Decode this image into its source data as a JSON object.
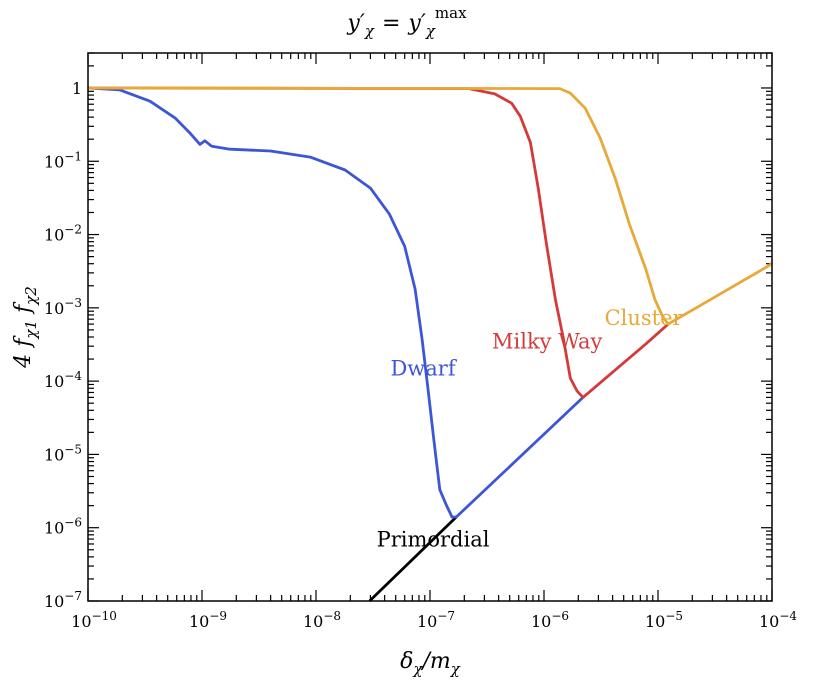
{
  "chart_data": {
    "type": "line",
    "title": {
      "lhs": "y′",
      "lhs_sub": "χ",
      "eq": "=",
      "rhs": "y′",
      "rhs_sub": "χ",
      "rhs_sup": "max"
    },
    "xlabel": {
      "main": "δ",
      "sub1": "χ",
      "slash": "/m",
      "sub2": "χ"
    },
    "ylabel": {
      "prefix": "4 f",
      "sub1": "χ1",
      "mid": " f",
      "sub2": "χ2"
    },
    "xscale": "log",
    "yscale": "log",
    "xlim": [
      1e-10,
      0.0001
    ],
    "ylim": [
      1e-07,
      3
    ],
    "xticks": [
      1e-10,
      1e-09,
      1e-08,
      1e-07,
      1e-06,
      1e-05,
      0.0001
    ],
    "yticks": [
      1e-07,
      1e-06,
      1e-05,
      0.0001,
      0.001,
      0.01,
      0.1,
      1
    ],
    "grid": false,
    "series": [
      {
        "name": "Primordial",
        "color": "#000000",
        "x": [
          2.95e-08,
          1.7e-07
        ],
        "y": [
          1e-07,
          1.4e-06
        ]
      },
      {
        "name": "Dwarf",
        "color": "#3d56d6",
        "x": [
          1e-10,
          1.9e-10,
          3.5e-10,
          5.8e-10,
          7.9e-10,
          9.6e-10,
          1.06e-09,
          1.22e-09,
          1.76e-09,
          4e-09,
          8.9e-09,
          1.8e-08,
          3e-08,
          4.4e-08,
          6e-08,
          7.4e-08,
          8.5e-08,
          9.6e-08,
          1.08e-07,
          1.22e-07,
          1.38e-07,
          1.56e-07,
          1.7e-07,
          2.2e-06
        ],
        "y": [
          1,
          0.94,
          0.66,
          0.39,
          0.24,
          0.17,
          0.19,
          0.16,
          0.146,
          0.138,
          0.114,
          0.076,
          0.043,
          0.019,
          0.0069,
          0.0018,
          0.00038,
          7.8e-05,
          1.6e-05,
          3.3e-06,
          2.1e-06,
          1.4e-06,
          1.4e-06,
          6e-05
        ]
      },
      {
        "name": "Milky Way",
        "color": "#d43a3a",
        "x": [
          1e-10,
          2.2e-07,
          3.7e-07,
          5.2e-07,
          6.2e-07,
          7.6e-07,
          8.9e-07,
          1.05e-06,
          1.26e-06,
          1.48e-06,
          1.7e-06,
          1.95e-06,
          2.2e-06,
          7.8e-06,
          1.23e-05
        ],
        "y": [
          1,
          0.98,
          0.83,
          0.62,
          0.41,
          0.18,
          0.043,
          0.0075,
          0.0013,
          0.00038,
          0.00011,
          7.3e-05,
          6e-05,
          0.00032,
          0.0006
        ]
      },
      {
        "name": "Cluster",
        "color": "#e8a83a",
        "x": [
          1e-10,
          1.38e-06,
          1.7e-06,
          2.3e-06,
          3.1e-06,
          4.2e-06,
          5.6e-06,
          7.8e-06,
          9.4e-06,
          1.1e-05,
          1.23e-05,
          9.5e-05,
          0.0001
        ],
        "y": [
          1,
          0.98,
          0.85,
          0.53,
          0.21,
          0.059,
          0.014,
          0.0034,
          0.0013,
          0.00076,
          0.0006,
          0.0038,
          0.0041
        ]
      }
    ],
    "annotations": [
      {
        "text": "Dwarf",
        "color": "#3d56d6",
        "x": 4.5e-08,
        "y": 0.00012
      },
      {
        "text": "Milky Way",
        "color": "#d43a3a",
        "x": 3.5e-07,
        "y": 0.00028
      },
      {
        "text": "Cluster",
        "color": "#e8a83a",
        "x": 3.4e-06,
        "y": 0.00058
      },
      {
        "text": "Primordial",
        "color": "#000000",
        "x": 3.4e-08,
        "y": 5.5e-07
      }
    ]
  }
}
